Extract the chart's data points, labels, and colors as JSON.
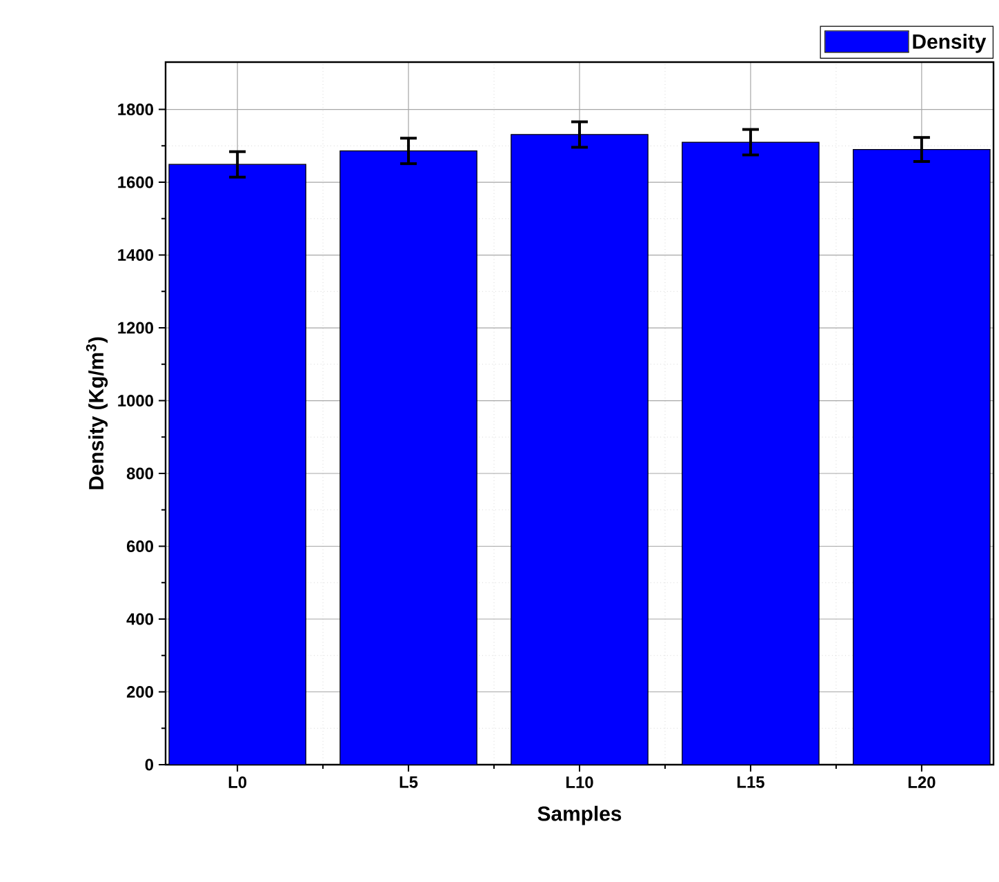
{
  "chart_data": {
    "type": "bar",
    "xlabel": "Samples",
    "ylabel": "Density (Kg/m$^{3}$)",
    "categories": [
      "L0",
      "L5",
      "L10",
      "L15",
      "L20"
    ],
    "series": [
      {
        "name": "Density",
        "color": "#0000ff",
        "values": [
          1649,
          1686,
          1731,
          1710,
          1690
        ],
        "errors": [
          35,
          35,
          35,
          35,
          33
        ]
      }
    ],
    "ylim": [
      0,
      1930
    ],
    "yticks": [
      0,
      200,
      400,
      600,
      800,
      1000,
      1200,
      1400,
      1600,
      1800
    ],
    "grid": true,
    "legend": "top right"
  }
}
